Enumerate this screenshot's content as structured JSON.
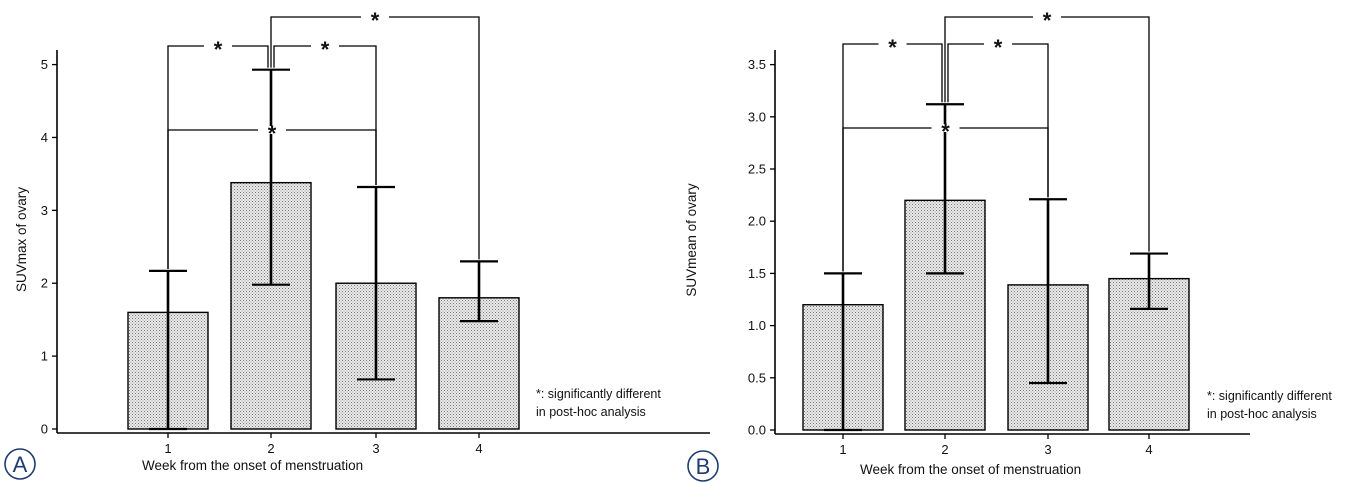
{
  "chart_data": [
    {
      "type": "bar",
      "panel_label": "A",
      "categories": [
        "1",
        "2",
        "3",
        "4"
      ],
      "values": [
        1.6,
        3.38,
        2.0,
        1.8
      ],
      "error_low": [
        0.0,
        1.98,
        0.68,
        1.48
      ],
      "error_high": [
        2.17,
        4.93,
        3.32,
        2.3
      ],
      "yticks": [
        "0",
        "1",
        "2",
        "3",
        "4",
        "5"
      ],
      "xlabel": "Week from the onset of menstruation",
      "ylabel": "SUVmax of ovary",
      "ylim": [
        0,
        5.2
      ],
      "grid": false,
      "significance": [
        {
          "from": "1",
          "to": "2",
          "label": "*"
        },
        {
          "from": "2",
          "to": "3",
          "label": "*"
        },
        {
          "from": "1",
          "to": "3",
          "label": "*"
        },
        {
          "from": "2",
          "to": "4",
          "label": "*"
        }
      ],
      "footnote_lines": [
        "*: significantly different",
        "in post-hoc analysis"
      ]
    },
    {
      "type": "bar",
      "panel_label": "B",
      "categories": [
        "1",
        "2",
        "3",
        "4"
      ],
      "values": [
        1.2,
        2.2,
        1.39,
        1.45
      ],
      "error_low": [
        0.0,
        1.5,
        0.45,
        1.16
      ],
      "error_high": [
        1.5,
        3.12,
        2.21,
        1.69
      ],
      "yticks": [
        "0.0",
        "0.5",
        "1.0",
        "1.5",
        "2.0",
        "2.5",
        "3.0",
        "3.5"
      ],
      "xlabel": "Week from the onset of menstruation",
      "ylabel": "SUVmean of ovary",
      "ylim": [
        0,
        3.64
      ],
      "grid": false,
      "significance": [
        {
          "from": "1",
          "to": "2",
          "label": "*"
        },
        {
          "from": "2",
          "to": "3",
          "label": "*"
        },
        {
          "from": "1",
          "to": "3",
          "label": "*"
        },
        {
          "from": "2",
          "to": "4",
          "label": "*"
        }
      ],
      "footnote_lines": [
        "*: significantly different",
        "in post-hoc analysis"
      ]
    }
  ]
}
